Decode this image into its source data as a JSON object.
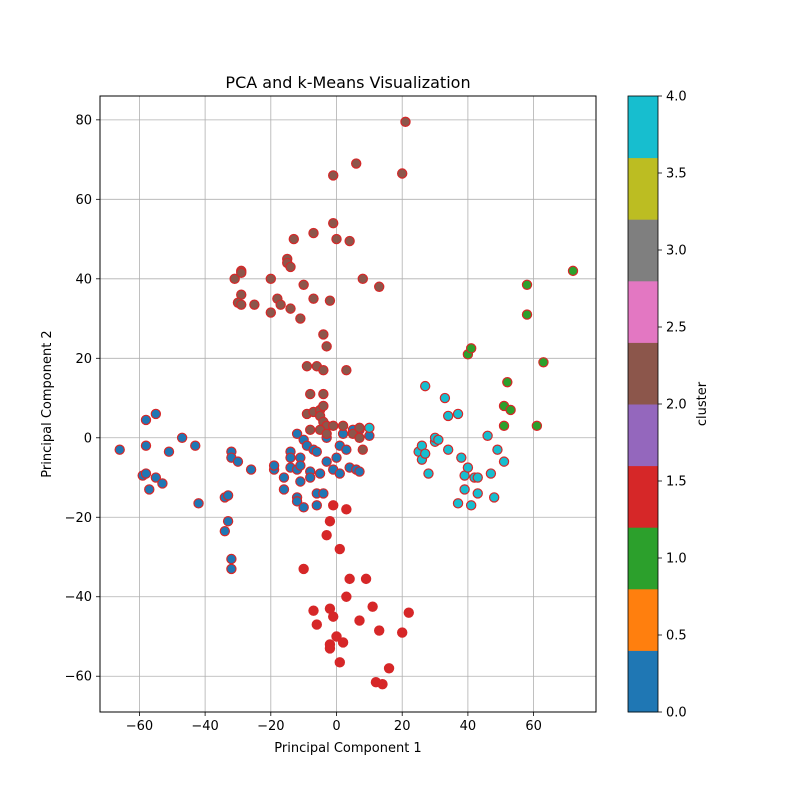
{
  "chart_data": {
    "type": "scatter",
    "title": "PCA  and k-Means Visualization",
    "xlabel": "Principal Component 1",
    "ylabel": "Principal Component 2",
    "xlim": [
      -72,
      79
    ],
    "ylim": [
      -69,
      86
    ],
    "x_ticks": [
      -60,
      -40,
      -20,
      0,
      20,
      40,
      60
    ],
    "y_ticks": [
      -60,
      -40,
      -20,
      0,
      20,
      40,
      60,
      80
    ],
    "grid": true,
    "edge_color": "#d62728",
    "colorbar": {
      "label": "cluster",
      "range": [
        0,
        4
      ],
      "ticks": [
        "0.0",
        "0.5",
        "1.0",
        "1.5",
        "2.0",
        "2.5",
        "3.0",
        "3.5",
        "4.0"
      ],
      "colors": [
        "#1f77b4",
        "#ff7f0e",
        "#2ca02c",
        "#d62728",
        "#9467bd",
        "#8c564b",
        "#e377c2",
        "#7f7f7f",
        "#bcbd22",
        "#17becf"
      ]
    },
    "series": [
      {
        "cluster": 0,
        "color": "#1f77b4",
        "points": [
          [
            -66,
            -3
          ],
          [
            -58,
            4.5
          ],
          [
            -55,
            6
          ],
          [
            -58,
            -2
          ],
          [
            -59,
            -9.5
          ],
          [
            -58,
            -9
          ],
          [
            -57,
            -13
          ],
          [
            -55,
            -10
          ],
          [
            -53,
            -11.5
          ],
          [
            -51,
            -3.5
          ],
          [
            -47,
            0
          ],
          [
            -43,
            -2
          ],
          [
            -42,
            -16.5
          ],
          [
            -34,
            -15
          ],
          [
            -33,
            -14.5
          ],
          [
            -34,
            -23.5
          ],
          [
            -33,
            -21
          ],
          [
            -32,
            -3.5
          ],
          [
            -32,
            -5
          ],
          [
            -30,
            -6
          ],
          [
            -32,
            -30.5
          ],
          [
            -32,
            -33
          ],
          [
            -26,
            -8
          ],
          [
            -19,
            -8
          ],
          [
            -19,
            -7
          ],
          [
            -16,
            -10
          ],
          [
            -16,
            -13
          ],
          [
            -14,
            -3.5
          ],
          [
            -14,
            -5
          ],
          [
            -14,
            -7.5
          ],
          [
            -12,
            1
          ],
          [
            -12,
            -8
          ],
          [
            -11,
            -5
          ],
          [
            -11,
            -7
          ],
          [
            -11,
            -11
          ],
          [
            -10,
            -0.5
          ],
          [
            -9,
            -2
          ],
          [
            -8,
            -8.5
          ],
          [
            -8,
            -10
          ],
          [
            -7,
            -3
          ],
          [
            -6,
            -3.5
          ],
          [
            -5,
            -9
          ],
          [
            -12,
            -15
          ],
          [
            -12,
            -16
          ],
          [
            -10,
            -17.5
          ],
          [
            -6,
            -14
          ],
          [
            -4,
            -14
          ],
          [
            -6,
            -17
          ],
          [
            -3,
            -6
          ],
          [
            -3,
            0
          ],
          [
            -1,
            -8
          ],
          [
            0,
            -5
          ],
          [
            1,
            -9
          ],
          [
            1,
            -2
          ],
          [
            3,
            -3
          ],
          [
            4,
            -7.5
          ],
          [
            6,
            -8
          ],
          [
            7,
            -8.5
          ],
          [
            2,
            1
          ],
          [
            5,
            2
          ],
          [
            7,
            2
          ],
          [
            10,
            0.5
          ]
        ]
      },
      {
        "cluster": 2,
        "color": "#2ca02c",
        "points": [
          [
            40,
            21
          ],
          [
            41,
            22.5
          ],
          [
            51,
            8
          ],
          [
            53,
            7
          ],
          [
            52,
            14
          ],
          [
            51,
            3
          ],
          [
            58,
            31
          ],
          [
            58,
            38.5
          ],
          [
            61,
            3
          ],
          [
            63,
            19
          ],
          [
            72,
            42
          ]
        ]
      },
      {
        "cluster": 2,
        "color": "#8c564b",
        "points": [
          [
            -31,
            40
          ],
          [
            -29,
            42
          ],
          [
            -29,
            41.5
          ],
          [
            -29,
            36
          ],
          [
            -30,
            34
          ],
          [
            -29,
            33.5
          ],
          [
            -25,
            33.5
          ],
          [
            -20,
            40
          ],
          [
            -20,
            31.5
          ],
          [
            -18,
            35
          ],
          [
            -17,
            33.5
          ],
          [
            -15,
            45
          ],
          [
            -15,
            44
          ],
          [
            -14,
            43
          ],
          [
            -13,
            50
          ],
          [
            -11,
            30
          ],
          [
            -14,
            32.5
          ],
          [
            -10,
            38.5
          ],
          [
            -7,
            51.5
          ],
          [
            -7,
            35
          ],
          [
            -9,
            18
          ],
          [
            -6,
            18
          ],
          [
            -4,
            17
          ],
          [
            -4,
            26
          ],
          [
            -3,
            23
          ],
          [
            -2,
            34.5
          ],
          [
            -1,
            54
          ],
          [
            -1,
            66
          ],
          [
            0,
            50
          ],
          [
            4,
            49.5
          ],
          [
            6,
            69
          ],
          [
            8,
            40
          ],
          [
            13,
            38
          ],
          [
            20,
            66.5
          ],
          [
            21,
            79.5
          ],
          [
            -8,
            11
          ],
          [
            -4,
            11
          ],
          [
            -9,
            6
          ],
          [
            -7,
            6.5
          ],
          [
            -5,
            7
          ],
          [
            -4,
            8
          ],
          [
            -5,
            5.5
          ],
          [
            -4,
            4
          ],
          [
            -3,
            3
          ],
          [
            -5,
            2
          ],
          [
            -3,
            1
          ],
          [
            -8,
            2
          ],
          [
            -1,
            3
          ],
          [
            2,
            3
          ],
          [
            5,
            1
          ],
          [
            7,
            2.5
          ],
          [
            3,
            17
          ],
          [
            7,
            0
          ],
          [
            8,
            -3
          ]
        ]
      },
      {
        "cluster": 1.5,
        "color": "#d62728",
        "points": [
          [
            -2,
            -21
          ],
          [
            -3,
            -24.5
          ],
          [
            -1,
            -17
          ],
          [
            1,
            -28
          ],
          [
            3,
            -18
          ],
          [
            4,
            -35.5
          ],
          [
            3,
            -40
          ],
          [
            9,
            -35.5
          ],
          [
            -7,
            -43.5
          ],
          [
            -6,
            -47
          ],
          [
            -2,
            -43
          ],
          [
            -1,
            -45
          ],
          [
            -2,
            -52
          ],
          [
            -2,
            -53
          ],
          [
            0,
            -50
          ],
          [
            2,
            -51.5
          ],
          [
            1,
            -56.5
          ],
          [
            7,
            -46
          ],
          [
            11,
            -42.5
          ],
          [
            13,
            -48.5
          ],
          [
            12,
            -61.5
          ],
          [
            14,
            -62
          ],
          [
            16,
            -58
          ],
          [
            20,
            -49
          ],
          [
            22,
            -44
          ],
          [
            -10,
            -33
          ]
        ]
      },
      {
        "cluster": 4,
        "color": "#17becf",
        "points": [
          [
            25,
            -3.5
          ],
          [
            26,
            -2
          ],
          [
            26,
            -5.5
          ],
          [
            27,
            -4
          ],
          [
            27,
            13
          ],
          [
            28,
            -9
          ],
          [
            30,
            -1
          ],
          [
            30,
            0
          ],
          [
            31,
            -0.5
          ],
          [
            33,
            10
          ],
          [
            34,
            5.5
          ],
          [
            34,
            -3
          ],
          [
            37,
            6
          ],
          [
            38,
            -5
          ],
          [
            39,
            -9.5
          ],
          [
            39,
            -13
          ],
          [
            40,
            -7.5
          ],
          [
            41,
            -17
          ],
          [
            37,
            -16.5
          ],
          [
            42,
            -10
          ],
          [
            43,
            -10
          ],
          [
            43,
            -14
          ],
          [
            46,
            0.5
          ],
          [
            47,
            -9
          ],
          [
            48,
            -15
          ],
          [
            49,
            -3
          ],
          [
            51,
            -6
          ],
          [
            10,
            2.5
          ]
        ]
      }
    ]
  }
}
